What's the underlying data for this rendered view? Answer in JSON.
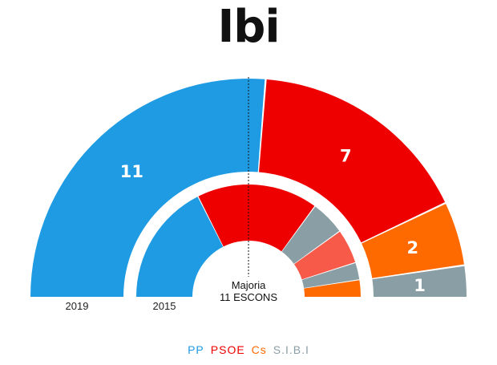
{
  "title": "Ibi",
  "chart_data": {
    "type": "parliament-semicircle",
    "title": "Ibi",
    "rings": [
      {
        "label": "2019",
        "seats_labeled": true,
        "segments": [
          {
            "party": "PP",
            "seats": 11,
            "label": "11"
          },
          {
            "party": "PSOE",
            "seats": 7,
            "label": "7"
          },
          {
            "party": "Cs",
            "seats": 2,
            "label": "2"
          },
          {
            "party": "S.I.B.I",
            "seats": 1,
            "label": "1"
          }
        ]
      },
      {
        "label": "2015",
        "seats_labeled": false,
        "segments": [
          {
            "party": "PP",
            "seats": 7
          },
          {
            "party": "PSOE",
            "seats": 7
          },
          {
            "party": "S.I.B.I",
            "seats": 2
          },
          {
            "party": "Other (light red)",
            "seats": 2
          },
          {
            "party": "S.I.B.I",
            "seats": 1
          },
          {
            "party": "Cs",
            "seats": 1
          }
        ]
      }
    ],
    "majority": {
      "line1": "Majoria",
      "line2": "11 ESCONS"
    },
    "legend": [
      {
        "name": "PP",
        "color": "#1e9be2"
      },
      {
        "name": "PSOE",
        "color": "#ee0000"
      },
      {
        "name": "Cs",
        "color": "#ff6a00"
      },
      {
        "name": "S.I.B.I",
        "color": "#8a9ea5"
      }
    ],
    "colors": {
      "PP": "#1e9be2",
      "PSOE": "#ee0000",
      "Cs": "#ff6a00",
      "S.I.B.I": "#8a9ea5",
      "Other (light red)": "#f85a4a"
    }
  }
}
